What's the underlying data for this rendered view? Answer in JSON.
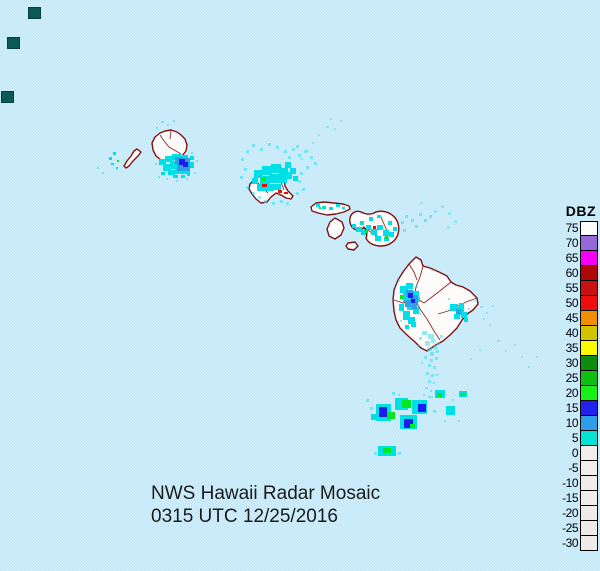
{
  "caption": {
    "line1": "NWS Hawaii Radar Mosaic",
    "line2": "0315 UTC 12/25/2016"
  },
  "legend": {
    "title": "DBZ",
    "items": [
      {
        "label": "75",
        "color": "#fefefe"
      },
      {
        "label": "70",
        "color": "#9668d9"
      },
      {
        "label": "65",
        "color": "#f500f5"
      },
      {
        "label": "60",
        "color": "#b00606"
      },
      {
        "label": "55",
        "color": "#c91111"
      },
      {
        "label": "50",
        "color": "#ee0e0e"
      },
      {
        "label": "45",
        "color": "#f09000"
      },
      {
        "label": "40",
        "color": "#d2c300"
      },
      {
        "label": "35",
        "color": "#fdf900"
      },
      {
        "label": "30",
        "color": "#0d8c0d"
      },
      {
        "label": "25",
        "color": "#10c010"
      },
      {
        "label": "20",
        "color": "#17f017"
      },
      {
        "label": "15",
        "color": "#2222ee"
      },
      {
        "label": "10",
        "color": "#2d9fe8"
      },
      {
        "label": "5",
        "color": "#06e2d6"
      },
      {
        "label": "0",
        "color": "#f1eded"
      },
      {
        "label": "-5",
        "color": "#f1eded"
      },
      {
        "label": "-10",
        "color": "#f0ecec"
      },
      {
        "label": "-15",
        "color": "#f0ecec"
      },
      {
        "label": "-20",
        "color": "#efebeb"
      },
      {
        "label": "-25",
        "color": "#efebeb"
      },
      {
        "label": "-30",
        "color": "#efebeb"
      }
    ]
  },
  "colors": {
    "ocean": "#c2e8f8",
    "island_fill": "#fdfcfa",
    "coastline": "#7e1212",
    "echo_cyan": "#00dee6",
    "echo_blue_medium": "#2d9fe8",
    "echo_blue_dark": "#1c1cee",
    "echo_green": "#00e81e",
    "echo_red": "#e21010",
    "corner_artifact": "#0b5a55"
  }
}
